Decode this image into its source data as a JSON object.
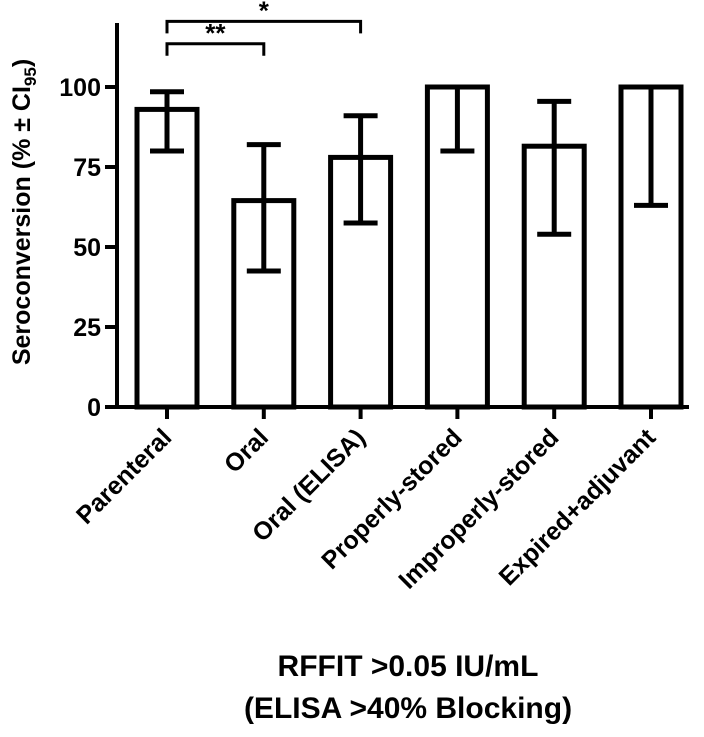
{
  "chart_data": {
    "type": "bar",
    "categories": [
      "Parenteral",
      "Oral",
      "Oral (ELISA)",
      "Properly-stored",
      "Improperly-stored",
      "Expired+adjuvant"
    ],
    "values": [
      93,
      64.5,
      78,
      100,
      81.5,
      100
    ],
    "error_bars": [
      {
        "low": 80,
        "high": 98.5
      },
      {
        "low": 42.5,
        "high": 82
      },
      {
        "low": 57.5,
        "high": 91
      },
      {
        "low": 80,
        "high": 100
      },
      {
        "low": 54,
        "high": 95.5
      },
      {
        "low": 63,
        "high": 100
      }
    ],
    "ylabel": "Seroconversion (% ± CI",
    "ylabel_sub": "95",
    "ylabel_close": ")",
    "xlabel_line1": "RFFIT >0.05 IU/mL",
    "xlabel_line2": "(ELISA >40% Blocking)",
    "ylim": [
      0,
      120
    ],
    "yticks": [
      0,
      25,
      50,
      75,
      100
    ],
    "ytick_labels": [
      "0",
      "25",
      "50",
      "75",
      "100"
    ],
    "significance": [
      {
        "from": 0,
        "to": 2,
        "label": "*"
      },
      {
        "from": 0,
        "to": 1,
        "label": "**"
      }
    ],
    "bar_fill": "#ffffff",
    "bar_stroke": "#000000"
  }
}
